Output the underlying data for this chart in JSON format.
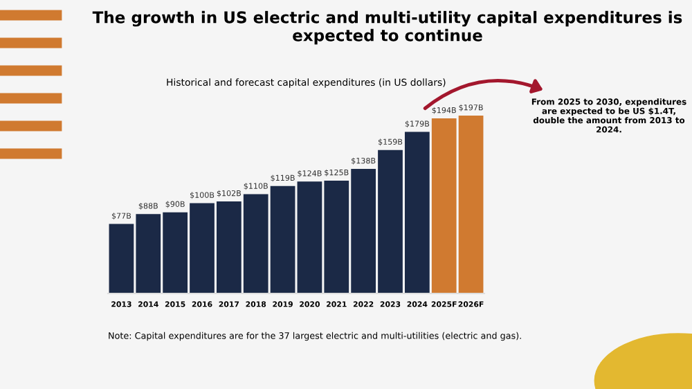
{
  "chart_data": {
    "type": "bar",
    "title": "The growth in US electric and multi-utility capital expenditures is expected to continue",
    "subtitle": "Historical and forecast capital expenditures (in US dollars)",
    "categories": [
      "2013",
      "2014",
      "2015",
      "2016",
      "2017",
      "2018",
      "2019",
      "2020",
      "2021",
      "2022",
      "2023",
      "2024",
      "2025F",
      "2026F"
    ],
    "values": [
      77,
      88,
      90,
      100,
      102,
      110,
      119,
      124,
      125,
      138,
      159,
      179,
      194,
      197
    ],
    "colors": [
      "#1b2946",
      "#1b2946",
      "#1b2946",
      "#1b2946",
      "#1b2946",
      "#1b2946",
      "#1b2946",
      "#1b2946",
      "#1b2946",
      "#1b2946",
      "#1b2946",
      "#1b2946",
      "#d07a30",
      "#d07a30"
    ],
    "value_labels": [
      "$77B",
      "$88B",
      "$90B",
      "$100B",
      "$102B",
      "$110B",
      "$119B",
      "$124B",
      "$125B",
      "$138B",
      "$159B",
      "$179B",
      "$194B",
      "$197B"
    ],
    "annotations": [
      "From 2025 to 2030, expenditures are expected to be US $1.4T, double the amount from 2013 to 2024.",
      "Note: Capital expenditures are for the 37 largest electric and multi-utilities (electric and gas)."
    ]
  }
}
